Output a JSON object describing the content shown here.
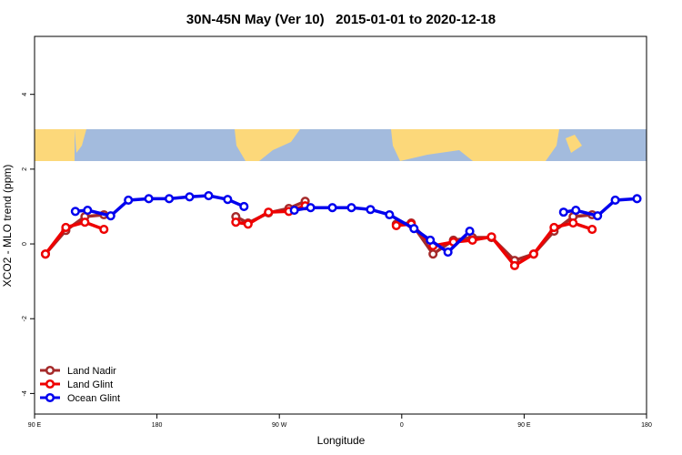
{
  "chart_data": {
    "type": "line",
    "title": "30N-45N May (Ver 10)   2015-01-01 to 2020-12-18",
    "xlabel": "Longitude",
    "ylabel": "XCO2 - MLO trend (ppm)",
    "xlim": [
      90,
      540
    ],
    "ylim": [
      -4.55,
      5.55
    ],
    "xticks": [
      {
        "value": 90,
        "label": "90 E"
      },
      180,
      {
        "value": 270,
        "label": "90 W"
      },
      {
        "value": 360,
        "label": "0"
      },
      {
        "value": 450,
        "label": "90 E"
      },
      {
        "value": 540,
        "label": "180"
      }
    ],
    "yticks": [
      -4,
      -2,
      0,
      2,
      4
    ],
    "legend": "bottom-left",
    "series": [
      {
        "name": "Land Nadir",
        "color": "#a52a2a",
        "x": [
          98,
          113,
          127,
          141,
          null,
          238,
          247,
          262,
          277,
          289,
          null,
          356,
          367,
          383,
          398,
          412,
          426,
          443,
          457,
          472,
          486,
          500
        ],
        "values": [
          -0.27,
          0.36,
          0.73,
          0.78,
          null,
          0.73,
          0.56,
          0.83,
          0.95,
          1.14,
          null,
          0.53,
          0.56,
          -0.27,
          0.1,
          0.17,
          0.17,
          -0.44,
          -0.27,
          0.34,
          0.73,
          0.78
        ]
      },
      {
        "name": "Land Glint",
        "color": "#ee0000",
        "x": [
          98,
          113,
          127,
          141,
          null,
          238,
          247,
          262,
          277,
          289,
          null,
          356,
          367,
          383,
          398,
          412,
          426,
          443,
          457,
          472,
          486,
          500
        ],
        "values": [
          -0.27,
          0.44,
          0.58,
          0.39,
          null,
          0.58,
          0.53,
          0.85,
          0.87,
          1.02,
          null,
          0.49,
          0.53,
          -0.05,
          0.05,
          0.1,
          0.19,
          -0.58,
          -0.27,
          0.44,
          0.56,
          0.39
        ]
      },
      {
        "name": "Ocean Glint",
        "color": "#0000ee",
        "x": [
          120,
          129,
          146,
          159,
          174,
          189,
          204,
          218,
          232,
          244,
          null,
          281,
          293,
          309,
          323,
          337,
          351,
          369,
          381,
          394,
          410,
          null,
          479,
          488,
          504,
          517,
          533
        ],
        "values": [
          0.87,
          0.9,
          0.75,
          1.17,
          1.21,
          1.21,
          1.26,
          1.29,
          1.19,
          1.0,
          null,
          0.9,
          0.97,
          0.97,
          0.97,
          0.92,
          0.78,
          0.41,
          0.1,
          -0.22,
          0.34,
          null,
          0.85,
          0.9,
          0.75,
          1.17,
          1.21
        ]
      }
    ]
  }
}
